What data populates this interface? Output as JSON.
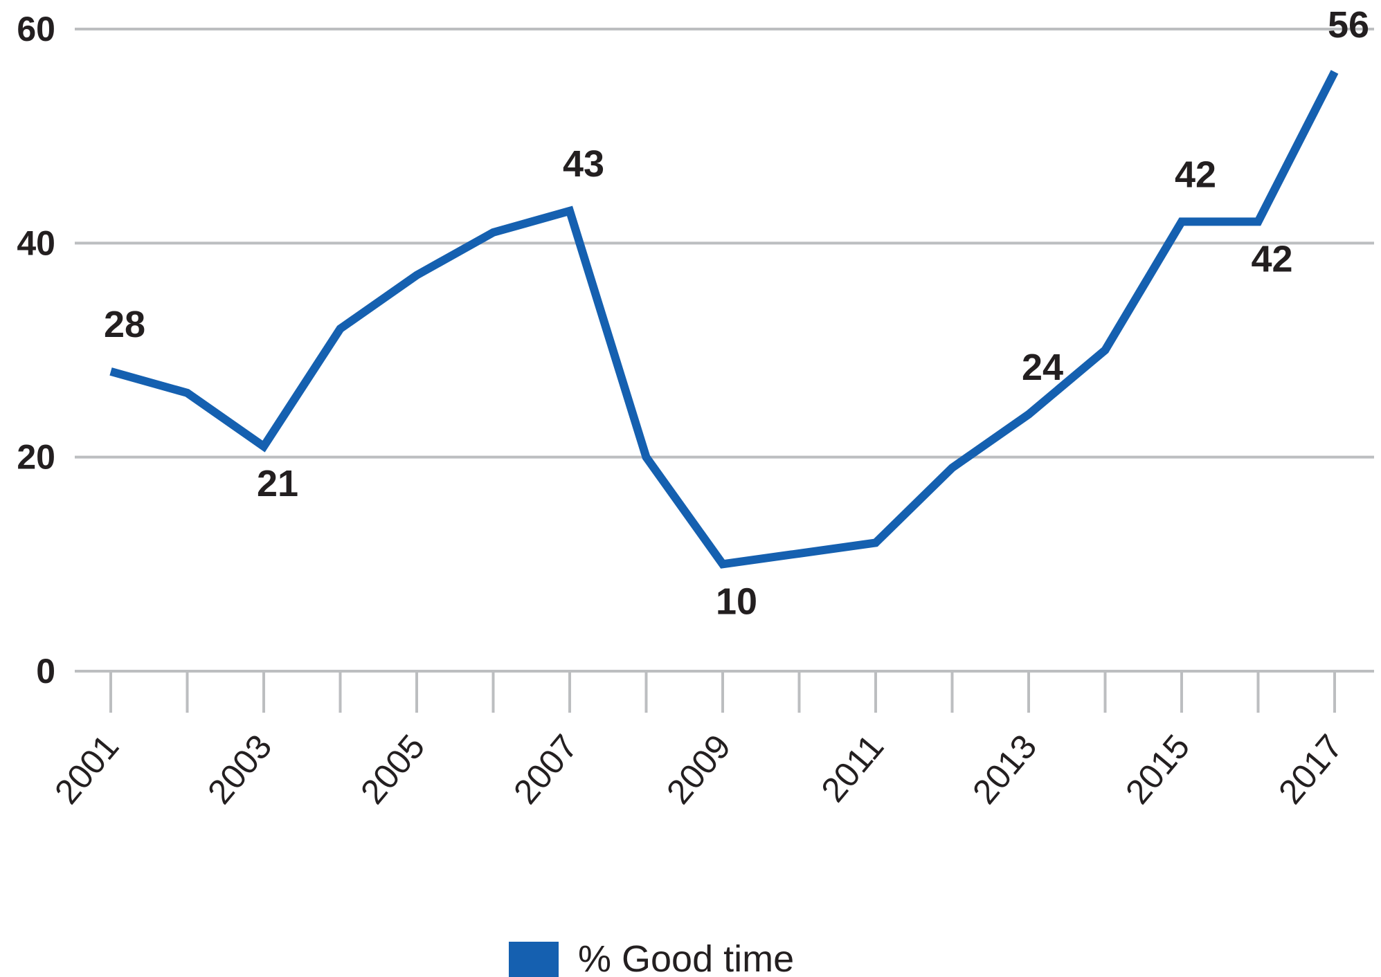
{
  "chart_data": {
    "type": "line",
    "x": [
      2001,
      2002,
      2003,
      2004,
      2005,
      2006,
      2007,
      2008,
      2009,
      2010,
      2011,
      2012,
      2013,
      2014,
      2015,
      2016,
      2017
    ],
    "series": [
      {
        "name": "% Good time",
        "values": [
          28,
          26,
          21,
          32,
          37,
          41,
          43,
          20,
          10,
          11,
          12,
          19,
          24,
          30,
          42,
          42,
          56
        ],
        "color": "#1560b0"
      }
    ],
    "data_labels": [
      {
        "x": 2001,
        "text": "28",
        "position": "above"
      },
      {
        "x": 2003,
        "text": "21",
        "position": "below"
      },
      {
        "x": 2007,
        "text": "43",
        "position": "above"
      },
      {
        "x": 2009,
        "text": "10",
        "position": "below"
      },
      {
        "x": 2013,
        "text": "24",
        "position": "above"
      },
      {
        "x": 2015,
        "text": "42",
        "position": "above"
      },
      {
        "x": 2016,
        "text": "42",
        "position": "below"
      },
      {
        "x": 2017,
        "text": "56",
        "position": "above"
      }
    ],
    "yticks": [
      "0",
      "20",
      "40",
      "60"
    ],
    "xticks": [
      "2001",
      "2003",
      "2005",
      "2007",
      "2009",
      "2011",
      "2013",
      "2015",
      "2017"
    ],
    "ylim": [
      0,
      60
    ],
    "xlim": [
      2001,
      2017
    ],
    "grid": "horizontal",
    "gridline_color": "#bcbec0",
    "legend_position": "bottom-center",
    "legend": [
      {
        "label": "% Good time",
        "color": "#1560b0"
      }
    ]
  }
}
